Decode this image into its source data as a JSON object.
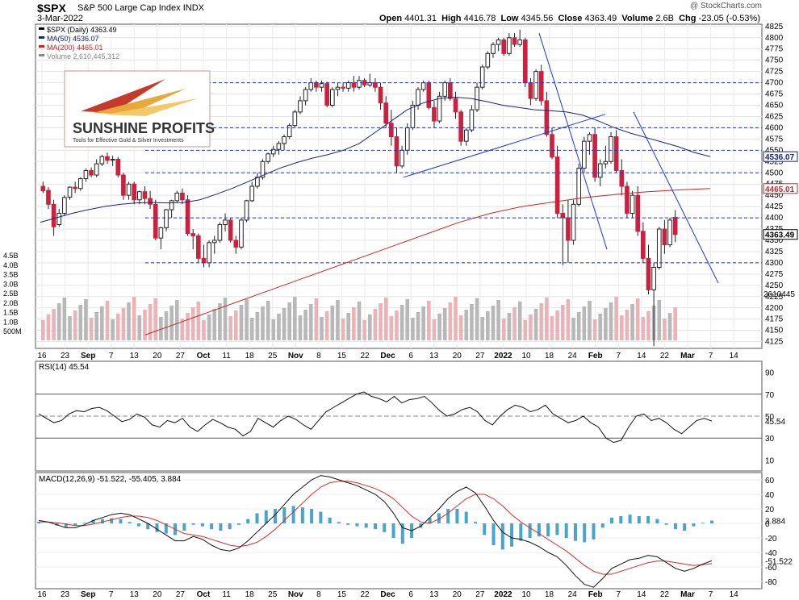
{
  "header": {
    "symbol": "$SPX",
    "name": "S&P 500 Large Cap Index",
    "exchange": "INDX",
    "date": "3-Mar-2022",
    "open_label": "Open",
    "open": "4401.31",
    "high_label": "High",
    "high": "4416.78",
    "low_label": "Low",
    "low": "4345.56",
    "close_label": "Close",
    "close": "4363.49",
    "volume_label": "Volume",
    "volume": "2.6B",
    "chg_label": "Chg",
    "chg": "-23.05 (-0.53%)",
    "copyright": "@ StockCharts.com"
  },
  "logo": {
    "title": "SUNSHINE PROFITS",
    "tagline": "Tools for Effective Gold & Silver Investments"
  },
  "colors": {
    "up": "#ffffff",
    "down": "#c8223f",
    "ma50": "#1a237e",
    "ma200": "#c62828",
    "vol_down": "#e8b4b8",
    "vol_up": "#b8b8b8",
    "macd_hist": "#4aa3c8",
    "trendline": "#1f36d6",
    "rsi_fill": "#4a7a4a"
  },
  "chart_data": [
    {
      "type": "candlestick",
      "title": "$SPX (Daily) 4363.49",
      "legend": [
        {
          "name": "$SPX (Daily)",
          "value": "4363.49",
          "color": "#000000"
        },
        {
          "name": "MA(50)",
          "value": "4536.07",
          "color": "#1a237e"
        },
        {
          "name": "MA(200)",
          "value": "4465.01",
          "color": "#c62828"
        },
        {
          "name": "Volume",
          "value": "2,610,445,312",
          "color": "#888888"
        }
      ],
      "x_tick_labels": [
        "16",
        "23",
        "Sep",
        "7",
        "13",
        "20",
        "27",
        "Oct",
        "11",
        "18",
        "25",
        "Nov",
        "8",
        "15",
        "22",
        "Dec",
        "6",
        "13",
        "20",
        "27",
        "2022",
        "10",
        "18",
        "24",
        "Feb",
        "7",
        "14",
        "22",
        "Mar",
        "7",
        "14"
      ],
      "y_ticks": [
        4125,
        4150,
        4175,
        4200,
        4225,
        4250,
        4275,
        4300,
        4325,
        4350,
        4375,
        4400,
        4425,
        4450,
        4475,
        4500,
        4525,
        4550,
        4575,
        4600,
        4625,
        4650,
        4675,
        4700,
        4725,
        4750,
        4775,
        4800,
        4825
      ],
      "ylim": [
        4110,
        4830
      ],
      "volume_ticks": [
        "500M",
        "1.0B",
        "1.5B",
        "2.0B",
        "2.5B",
        "3.0B",
        "3.5B",
        "4.0B",
        "4.5B"
      ],
      "right_labels": {
        "ma50": "4536.07",
        "ma200": "4465.01",
        "close": "4363.49",
        "volume": "2610445"
      },
      "horizontal_levels": [
        4700,
        4600,
        4550,
        4500,
        4400,
        4300
      ],
      "ohlc_sample": [
        [
          4470,
          4480,
          4455,
          4460
        ],
        [
          4461,
          4468,
          4420,
          4430
        ],
        [
          4430,
          4440,
          4360,
          4380
        ],
        [
          4385,
          4420,
          4380,
          4410
        ],
        [
          4410,
          4450,
          4405,
          4445
        ],
        [
          4446,
          4470,
          4440,
          4468
        ],
        [
          4468,
          4480,
          4455,
          4465
        ],
        [
          4465,
          4490,
          4460,
          4487
        ],
        [
          4487,
          4510,
          4480,
          4505
        ],
        [
          4505,
          4512,
          4490,
          4495
        ],
        [
          4495,
          4530,
          4490,
          4520
        ],
        [
          4520,
          4540,
          4515,
          4536
        ],
        [
          4536,
          4545,
          4520,
          4528
        ],
        [
          4528,
          4538,
          4515,
          4530
        ],
        [
          4530,
          4535,
          4490,
          4495
        ],
        [
          4495,
          4500,
          4440,
          4450
        ],
        [
          4450,
          4480,
          4440,
          4475
        ],
        [
          4475,
          4480,
          4430,
          4440
        ],
        [
          4440,
          4460,
          4430,
          4458
        ],
        [
          4458,
          4470,
          4430,
          4443
        ],
        [
          4443,
          4460,
          4420,
          4430
        ],
        [
          4430,
          4440,
          4350,
          4355
        ],
        [
          4355,
          4380,
          4330,
          4378
        ],
        [
          4378,
          4420,
          4370,
          4418
        ],
        [
          4418,
          4440,
          4400,
          4438
        ],
        [
          4438,
          4460,
          4435,
          4455
        ],
        [
          4455,
          4465,
          4430,
          4440
        ],
        [
          4440,
          4450,
          4360,
          4365
        ],
        [
          4365,
          4375,
          4330,
          4360
        ],
        [
          4360,
          4365,
          4300,
          4310
        ],
        [
          4310,
          4340,
          4290,
          4300
        ],
        [
          4300,
          4350,
          4290,
          4345
        ],
        [
          4345,
          4360,
          4320,
          4350
        ],
        [
          4350,
          4390,
          4345,
          4385
        ],
        [
          4385,
          4410,
          4370,
          4395
        ],
        [
          4395,
          4400,
          4345,
          4350
        ],
        [
          4350,
          4360,
          4320,
          4335
        ],
        [
          4335,
          4400,
          4330,
          4395
        ],
        [
          4395,
          4440,
          4390,
          4438
        ],
        [
          4438,
          4480,
          4435,
          4470
        ],
        [
          4470,
          4500,
          4465,
          4490
        ],
        [
          4490,
          4530,
          4485,
          4525
        ],
        [
          4525,
          4545,
          4520,
          4542
        ],
        [
          4542,
          4560,
          4535,
          4552
        ],
        [
          4552,
          4570,
          4540,
          4565
        ],
        [
          4565,
          4585,
          4550,
          4580
        ],
        [
          4580,
          4610,
          4575,
          4605
        ],
        [
          4605,
          4640,
          4600,
          4635
        ],
        [
          4635,
          4670,
          4630,
          4660
        ],
        [
          4660,
          4690,
          4650,
          4685
        ],
        [
          4685,
          4710,
          4680,
          4700
        ],
        [
          4700,
          4705,
          4680,
          4690
        ],
        [
          4690,
          4705,
          4680,
          4698
        ],
        [
          4698,
          4702,
          4645,
          4650
        ],
        [
          4650,
          4690,
          4645,
          4685
        ],
        [
          4685,
          4700,
          4670,
          4690
        ],
        [
          4690,
          4700,
          4680,
          4688
        ],
        [
          4688,
          4705,
          4680,
          4700
        ],
        [
          4700,
          4715,
          4680,
          4690
        ],
        [
          4690,
          4715,
          4685,
          4705
        ],
        [
          4705,
          4710,
          4690,
          4695
        ],
        [
          4695,
          4720,
          4690,
          4700
        ],
        [
          4700,
          4710,
          4680,
          4690
        ],
        [
          4690,
          4700,
          4640,
          4655
        ],
        [
          4655,
          4670,
          4600,
          4610
        ],
        [
          4610,
          4640,
          4560,
          4580
        ],
        [
          4580,
          4600,
          4500,
          4515
        ],
        [
          4515,
          4560,
          4510,
          4550
        ],
        [
          4550,
          4610,
          4540,
          4600
        ],
        [
          4600,
          4660,
          4595,
          4650
        ],
        [
          4650,
          4690,
          4640,
          4685
        ],
        [
          4685,
          4705,
          4680,
          4700
        ],
        [
          4700,
          4705,
          4640,
          4645
        ],
        [
          4645,
          4660,
          4600,
          4615
        ],
        [
          4615,
          4680,
          4610,
          4670
        ],
        [
          4670,
          4705,
          4660,
          4700
        ],
        [
          4700,
          4710,
          4660,
          4665
        ],
        [
          4665,
          4680,
          4620,
          4635
        ],
        [
          4635,
          4640,
          4560,
          4570
        ],
        [
          4570,
          4600,
          4560,
          4595
        ],
        [
          4595,
          4650,
          4590,
          4640
        ],
        [
          4640,
          4700,
          4635,
          4690
        ],
        [
          4690,
          4740,
          4685,
          4735
        ],
        [
          4735,
          4770,
          4730,
          4765
        ],
        [
          4765,
          4790,
          4755,
          4785
        ],
        [
          4785,
          4800,
          4770,
          4795
        ],
        [
          4795,
          4800,
          4760,
          4765
        ],
        [
          4765,
          4810,
          4760,
          4800
        ],
        [
          4800,
          4810,
          4780,
          4785
        ],
        [
          4785,
          4818,
          4780,
          4795
        ],
        [
          4795,
          4800,
          4690,
          4700
        ],
        [
          4700,
          4710,
          4650,
          4665
        ],
        [
          4665,
          4730,
          4660,
          4725
        ],
        [
          4725,
          4740,
          4650,
          4660
        ],
        [
          4660,
          4680,
          4580,
          4585
        ],
        [
          4585,
          4600,
          4530,
          4535
        ],
        [
          4535,
          4560,
          4400,
          4410
        ],
        [
          4410,
          4430,
          4295,
          4400
        ],
        [
          4400,
          4440,
          4300,
          4350
        ],
        [
          4350,
          4440,
          4340,
          4430
        ],
        [
          4430,
          4520,
          4425,
          4510
        ],
        [
          4510,
          4580,
          4500,
          4570
        ],
        [
          4570,
          4590,
          4540,
          4585
        ],
        [
          4585,
          4600,
          4480,
          4490
        ],
        [
          4490,
          4530,
          4470,
          4520
        ],
        [
          4520,
          4560,
          4510,
          4525
        ],
        [
          4525,
          4590,
          4520,
          4580
        ],
        [
          4580,
          4595,
          4500,
          4505
        ],
        [
          4505,
          4530,
          4450,
          4470
        ],
        [
          4470,
          4480,
          4400,
          4410
        ],
        [
          4410,
          4460,
          4400,
          4450
        ],
        [
          4450,
          4470,
          4360,
          4370
        ],
        [
          4370,
          4390,
          4300,
          4310
        ],
        [
          4310,
          4340,
          4230,
          4240
        ],
        [
          4240,
          4300,
          4115,
          4290
        ],
        [
          4290,
          4380,
          4285,
          4375
        ],
        [
          4375,
          4395,
          4320,
          4340
        ],
        [
          4340,
          4400,
          4335,
          4395
        ],
        [
          4401,
          4417,
          4346,
          4363
        ]
      ],
      "ma50_sample": [
        4390,
        4400,
        4410,
        4418,
        4425,
        4430,
        4433,
        4434,
        4433,
        4434,
        4440,
        4452,
        4465,
        4480,
        4495,
        4510,
        4522,
        4532,
        4540,
        4550,
        4565,
        4590,
        4615,
        4640,
        4655,
        4665,
        4668,
        4665,
        4658,
        4650,
        4645,
        4640,
        4638,
        4635,
        4628,
        4615,
        4600,
        4588,
        4578,
        4568,
        4558,
        4545,
        4536
      ],
      "ma200_sample": [
        4140,
        4165,
        4190,
        4215,
        4240,
        4265,
        4290,
        4315,
        4340,
        4365,
        4390,
        4410,
        4425,
        4435,
        4445,
        4452,
        4458,
        4462,
        4465
      ]
    },
    {
      "type": "line",
      "title": "RSI(14) 45.54",
      "series": [
        {
          "name": "RSI(14)",
          "current": "45.54"
        }
      ],
      "y_ticks": [
        10,
        30,
        50,
        70,
        90
      ],
      "ylim": [
        0,
        100
      ],
      "levels": [
        70,
        50,
        30
      ],
      "values_sample": [
        52,
        48,
        44,
        46,
        52,
        55,
        54,
        57,
        58,
        55,
        50,
        45,
        47,
        52,
        49,
        42,
        40,
        46,
        44,
        48,
        40,
        36,
        42,
        47,
        44,
        40,
        38,
        32,
        36,
        48,
        44,
        40,
        46,
        50,
        47,
        42,
        38,
        46,
        54,
        58,
        62,
        66,
        70,
        72,
        68,
        66,
        63,
        68,
        62,
        65,
        66,
        68,
        62,
        55,
        50,
        52,
        56,
        58,
        54,
        46,
        42,
        50,
        56,
        60,
        58,
        54,
        56,
        60,
        52,
        48,
        44,
        46,
        50,
        44,
        40,
        30,
        26,
        28,
        40,
        50,
        52,
        46,
        48,
        44,
        38,
        34,
        40,
        46,
        48,
        45.54
      ]
    },
    {
      "type": "line",
      "title": "MACD(12,26,9) -51.522, -55.405, 3.884",
      "series": [
        {
          "name": "MACD(12,26,9)",
          "current": "-51.522"
        },
        {
          "name": "Signal",
          "current": "-55.405"
        },
        {
          "name": "Histogram",
          "current": "3.884"
        }
      ],
      "y_ticks": [
        -80,
        -60,
        -40,
        -20,
        0,
        20,
        40,
        60
      ],
      "ylim": [
        -90,
        70
      ],
      "macd_sample": [
        4,
        2,
        -2,
        -6,
        -6,
        -2,
        4,
        8,
        12,
        14,
        12,
        6,
        0,
        -8,
        -16,
        -24,
        -24,
        -18,
        -22,
        -30,
        -36,
        -38,
        -34,
        -24,
        -12,
        0,
        12,
        26,
        40,
        50,
        60,
        66,
        64,
        60,
        56,
        52,
        46,
        40,
        30,
        14,
        -6,
        -10,
        -4,
        8,
        20,
        34,
        44,
        50,
        42,
        24,
        4,
        -12,
        -20,
        -22,
        -26,
        -32,
        -40,
        -46,
        -58,
        -72,
        -84,
        -88,
        -76,
        -62,
        -56,
        -50,
        -48,
        -44,
        -46,
        -54,
        -62,
        -66,
        -62,
        -56,
        -51.522
      ],
      "signal_sample": [
        2,
        2,
        1,
        -1,
        -3,
        -3,
        -1,
        2,
        5,
        8,
        10,
        10,
        8,
        4,
        -2,
        -8,
        -14,
        -16,
        -18,
        -22,
        -26,
        -30,
        -32,
        -30,
        -26,
        -18,
        -8,
        4,
        16,
        28,
        40,
        50,
        56,
        58,
        58,
        56,
        52,
        48,
        42,
        34,
        22,
        10,
        2,
        0,
        6,
        14,
        24,
        34,
        40,
        40,
        34,
        24,
        12,
        2,
        -6,
        -14,
        -22,
        -30,
        -38,
        -48,
        -58,
        -66,
        -70,
        -70,
        -66,
        -62,
        -58,
        -54,
        -52,
        -52,
        -54,
        -56,
        -58,
        -57,
        -55.405
      ]
    }
  ]
}
